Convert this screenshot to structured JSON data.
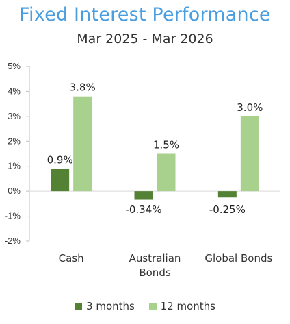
{
  "title": "Fixed Interest Performance",
  "subtitle": "Mar 2025 - Mar 2026",
  "colors": {
    "three_months": "#548235",
    "twelve_months": "#a9d18e",
    "title": "#4a9ee0"
  },
  "chart_data": {
    "type": "bar",
    "categories": [
      "Cash",
      "Australian Bonds",
      "Global Bonds"
    ],
    "category_lines": [
      [
        "Cash"
      ],
      [
        "Australian",
        "Bonds"
      ],
      [
        "Global Bonds"
      ]
    ],
    "series": [
      {
        "name": "3 months",
        "values": [
          0.9,
          -0.34,
          -0.25
        ],
        "labels": [
          "0.9%",
          "-0.34%",
          "-0.25%"
        ]
      },
      {
        "name": "12 months",
        "values": [
          3.8,
          1.5,
          3.0
        ],
        "labels": [
          "3.8%",
          "1.5%",
          "3.0%"
        ]
      }
    ],
    "ylim": [
      -2,
      5
    ],
    "yticks": [
      "-2%",
      "-1%",
      "0%",
      "1%",
      "2%",
      "3%",
      "4%",
      "5%"
    ],
    "ytick_values": [
      -2,
      -1,
      0,
      1,
      2,
      3,
      4,
      5
    ],
    "legend_position": "bottom",
    "grid": false
  },
  "legend": [
    {
      "label": "3 months"
    },
    {
      "label": "12 months"
    }
  ]
}
